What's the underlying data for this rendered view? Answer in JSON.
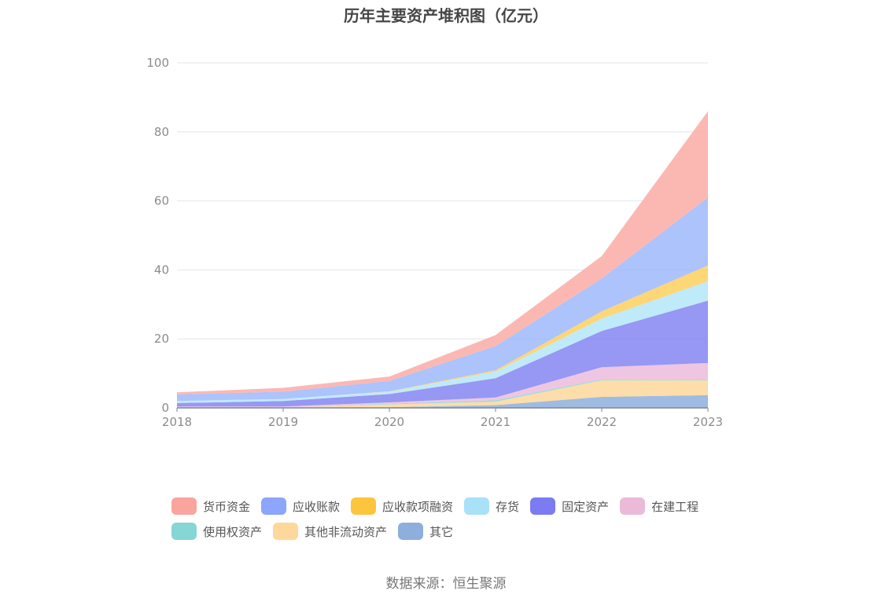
{
  "chart_data": {
    "type": "area",
    "stacked": true,
    "title": "历年主要资产堆积图（亿元）",
    "categories": [
      "2018",
      "2019",
      "2020",
      "2021",
      "2022",
      "2023"
    ],
    "ylim": [
      0,
      100
    ],
    "yticks": [
      0,
      20,
      40,
      60,
      80,
      100
    ],
    "grid": true,
    "legend_position": "bottom",
    "series": [
      {
        "name": "其它",
        "color": "#8eafdc",
        "values": [
          0.1,
          0.1,
          0.2,
          0.8,
          3.2,
          3.7
        ]
      },
      {
        "name": "其他非流动资产",
        "color": "#fdd79a",
        "values": [
          0.0,
          0.0,
          0.8,
          1.0,
          4.8,
          4.3
        ]
      },
      {
        "name": "使用权资产",
        "color": "#8dd6d6",
        "values": [
          0.0,
          0.0,
          0.2,
          0.4,
          0.3,
          0.2
        ]
      },
      {
        "name": "在建工程",
        "color": "#ebbcdc",
        "values": [
          0.3,
          0.3,
          0.4,
          0.8,
          3.5,
          4.8
        ]
      },
      {
        "name": "固定资产",
        "color": "#8585f2",
        "values": [
          1.0,
          1.6,
          2.4,
          5.6,
          10.5,
          18.1
        ]
      },
      {
        "name": "存货",
        "color": "#b4e6f8",
        "values": [
          0.6,
          0.6,
          0.7,
          1.9,
          3.6,
          5.6
        ]
      },
      {
        "name": "应收款项融资",
        "color": "#fdcf5e",
        "values": [
          0.0,
          0.0,
          0.1,
          0.4,
          2.1,
          4.6
        ]
      },
      {
        "name": "应收账款",
        "color": "#9db8fb",
        "values": [
          1.9,
          2.1,
          3.0,
          7.0,
          9.5,
          19.7
        ]
      },
      {
        "name": "货币资金",
        "color": "#faaba6",
        "values": [
          0.6,
          1.1,
          1.3,
          3.2,
          6.5,
          25.0
        ]
      }
    ]
  },
  "legend": {
    "row1": [
      "货币资金",
      "应收账款",
      "应收款项融资",
      "存货",
      "固定资产",
      "在建工程"
    ],
    "row2": [
      "使用权资产",
      "其他非流动资产",
      "其它"
    ],
    "colors": {
      "货币资金": "#faa49e",
      "应收账款": "#8ba6fa",
      "应收款项融资": "#fdc43d",
      "存货": "#a8e1f8",
      "固定资产": "#7b7bf2",
      "在建工程": "#ebbad9",
      "使用权资产": "#85d6d5",
      "其他非流动资产": "#fdd89a",
      "其它": "#8eaedb"
    }
  },
  "source": "数据来源：恒生聚源"
}
